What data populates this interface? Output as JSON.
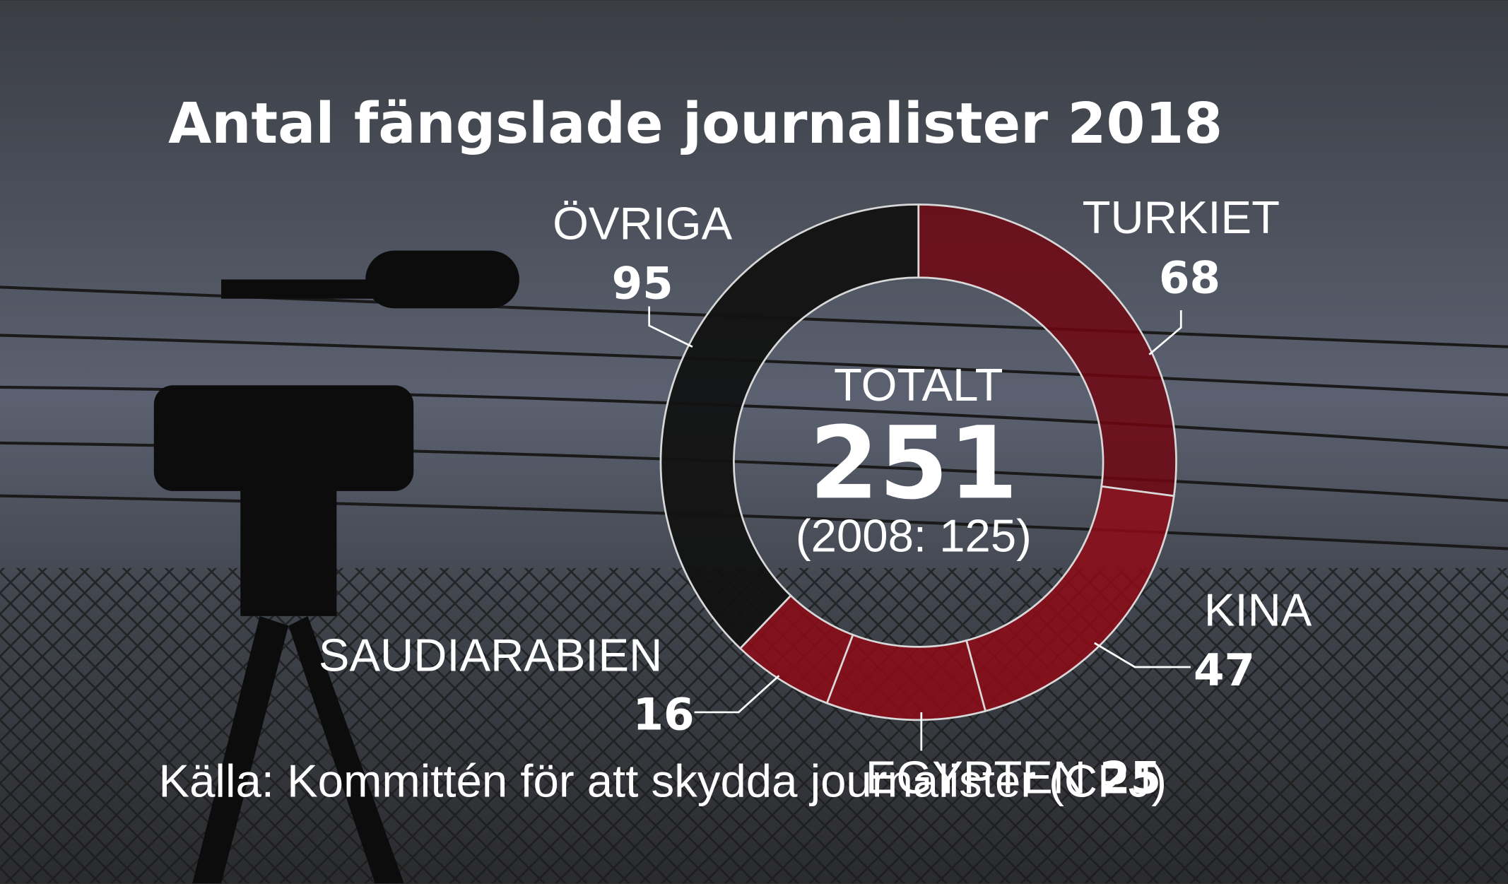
{
  "chart_data": {
    "type": "donut",
    "title": "Antal fängslade journalister 2018",
    "categories": [
      "TURKIET",
      "KINA",
      "EGYPTEN",
      "SAUDIARABIEN",
      "ÖVRIGA"
    ],
    "values": [
      68,
      47,
      25,
      16,
      95
    ],
    "colors": [
      "#6e0610",
      "#8e0a16",
      "#8e0a16",
      "#8e0a16",
      "#121212"
    ],
    "center_label": "TOTALT",
    "total": 251,
    "comparison": "(2008: 125)",
    "source": "Källa: Kommittén för att skydda journalister (CPJ)"
  }
}
